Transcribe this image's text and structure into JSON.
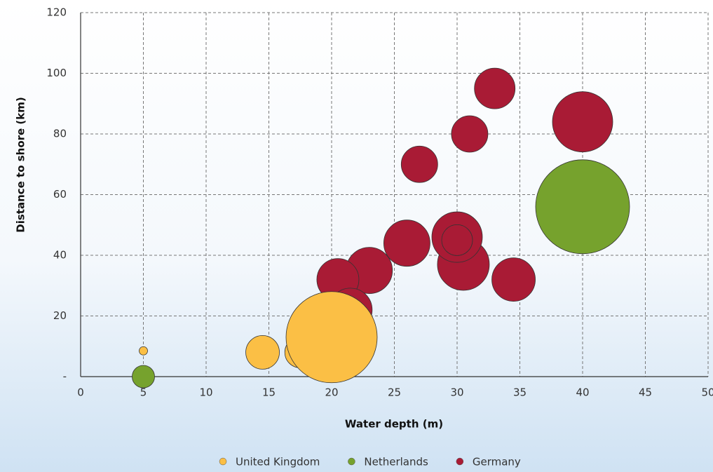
{
  "chart_data": {
    "type": "bubble",
    "xlabel": "Water depth (m)",
    "ylabel": "Distance to shore (km)",
    "xlim": [
      0,
      50
    ],
    "ylim": [
      0,
      120
    ],
    "xticks": [
      0,
      5,
      10,
      15,
      20,
      25,
      30,
      35,
      40,
      45,
      50
    ],
    "yticks": [
      {
        "value": 0,
        "label": "-"
      },
      20,
      40,
      60,
      80,
      100,
      120
    ],
    "grid": true,
    "legend": "bottom",
    "series": [
      {
        "name": "United Kingdom",
        "color": "#fbbf45",
        "x": [
          5,
          14.5,
          17.5,
          20
        ],
        "y": [
          8.5,
          8,
          8,
          13
        ],
        "size": [
          6,
          24,
          22,
          65
        ]
      },
      {
        "name": "Netherlands",
        "color": "#76a22d",
        "x": [
          40,
          5
        ],
        "y": [
          56,
          0
        ],
        "size": [
          67,
          16
        ]
      },
      {
        "name": "Germany",
        "color": "#a91b35",
        "x": [
          33,
          40,
          31,
          27,
          26,
          30.5,
          30,
          30,
          34.5,
          23,
          20.5,
          21.5
        ],
        "y": [
          95,
          84,
          80,
          70,
          44,
          37,
          46,
          45,
          32,
          35,
          32,
          22
        ],
        "size": [
          29,
          43,
          26,
          26,
          33,
          37,
          36,
          22,
          31,
          33,
          30,
          31
        ]
      }
    ]
  }
}
